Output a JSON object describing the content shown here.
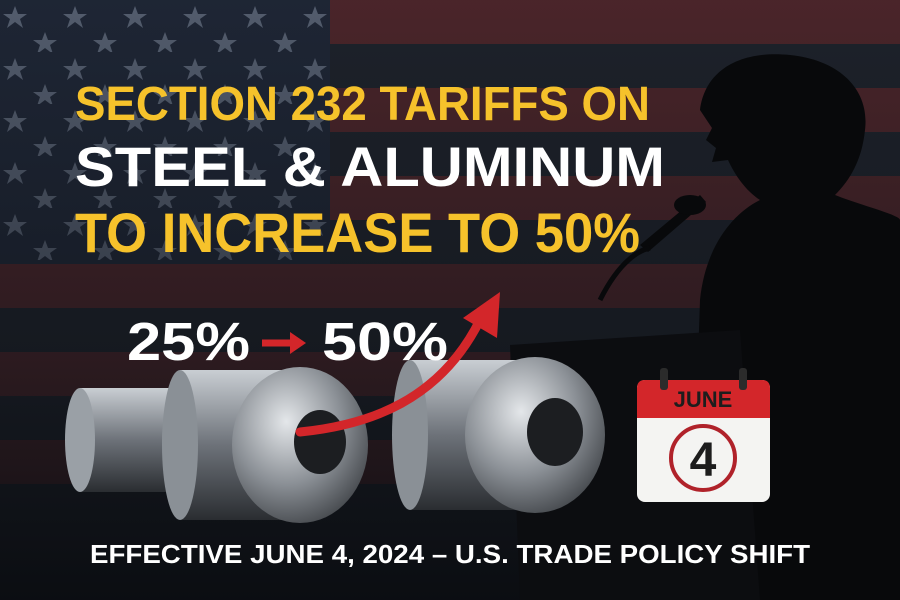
{
  "headline": {
    "line1": "SECTION 232 TARIFFS ON",
    "line2": "STEEL & ALUMINUM",
    "line3": "TO INCREASE TO 50%"
  },
  "rate_change": {
    "from": "25%",
    "to": "50%"
  },
  "calendar": {
    "month": "JUNE",
    "day": "4"
  },
  "footer": "EFFECTIVE JUNE 4, 2024 – U.S. TRADE POLICY SHIFT"
}
